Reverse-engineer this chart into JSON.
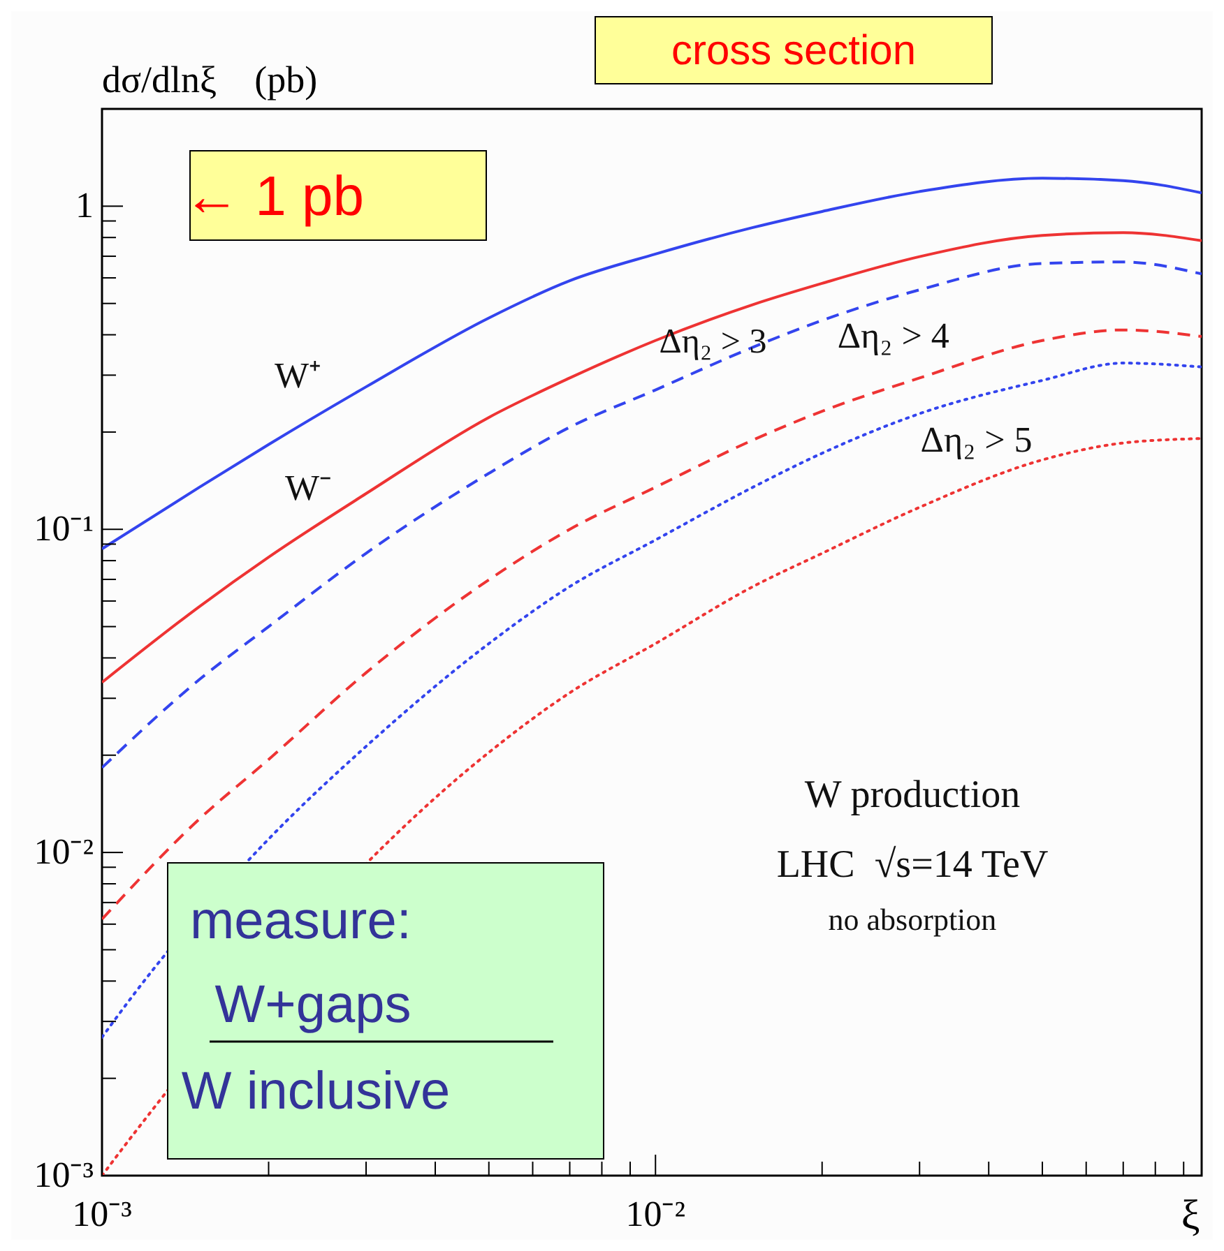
{
  "chart_data": {
    "type": "line",
    "ylabel": "dσ/dlnξ    (pb)",
    "xlabel": "ξ",
    "log": "xy",
    "xlim": [
      0.001,
      0.097
    ],
    "ylim": [
      0.001,
      2
    ],
    "xticks": [
      {
        "value": 0.001,
        "label": "10⁻³"
      },
      {
        "value": 0.002,
        "label": null
      },
      {
        "value": 0.003,
        "label": null
      },
      {
        "value": 0.004,
        "label": null
      },
      {
        "value": 0.005,
        "label": null
      },
      {
        "value": 0.006,
        "label": null
      },
      {
        "value": 0.007,
        "label": null
      },
      {
        "value": 0.008,
        "label": null
      },
      {
        "value": 0.009,
        "label": null
      },
      {
        "value": 0.01,
        "label": "10⁻²"
      },
      {
        "value": 0.02,
        "label": null
      },
      {
        "value": 0.03,
        "label": null
      },
      {
        "value": 0.04,
        "label": null
      },
      {
        "value": 0.05,
        "label": null
      },
      {
        "value": 0.06,
        "label": null
      },
      {
        "value": 0.07,
        "label": null
      },
      {
        "value": 0.08,
        "label": null
      },
      {
        "value": 0.09,
        "label": null
      }
    ],
    "yticks": [
      {
        "value": 0.001,
        "label": "10⁻³"
      },
      {
        "value": 0.002,
        "label": null
      },
      {
        "value": 0.003,
        "label": null
      },
      {
        "value": 0.004,
        "label": null
      },
      {
        "value": 0.005,
        "label": null
      },
      {
        "value": 0.006,
        "label": null
      },
      {
        "value": 0.007,
        "label": null
      },
      {
        "value": 0.008,
        "label": null
      },
      {
        "value": 0.009,
        "label": null
      },
      {
        "value": 0.01,
        "label": "10⁻²"
      },
      {
        "value": 0.02,
        "label": null
      },
      {
        "value": 0.03,
        "label": null
      },
      {
        "value": 0.04,
        "label": null
      },
      {
        "value": 0.05,
        "label": null
      },
      {
        "value": 0.06,
        "label": null
      },
      {
        "value": 0.07,
        "label": null
      },
      {
        "value": 0.08,
        "label": null
      },
      {
        "value": 0.09,
        "label": null
      },
      {
        "value": 0.1,
        "label": "10⁻¹"
      },
      {
        "value": 0.2,
        "label": null
      },
      {
        "value": 0.3,
        "label": null
      },
      {
        "value": 0.4,
        "label": null
      },
      {
        "value": 0.5,
        "label": null
      },
      {
        "value": 0.6,
        "label": null
      },
      {
        "value": 0.7,
        "label": null
      },
      {
        "value": 0.8,
        "label": null
      },
      {
        "value": 0.9,
        "label": null
      },
      {
        "value": 1,
        "label": "1"
      },
      {
        "value": 2,
        "label": null
      }
    ],
    "x": [
      0.001,
      0.0015,
      0.002,
      0.003,
      0.005,
      0.007,
      0.01,
      0.015,
      0.02,
      0.03,
      0.05,
      0.07,
      0.097
    ],
    "series": [
      {
        "color": "#3344ee",
        "line_style": "solid",
        "values": [
          0.087,
          0.135,
          0.183,
          0.276,
          0.451,
          0.588,
          0.711,
          0.859,
          0.963,
          1.11,
          1.22,
          1.2,
          1.1
        ]
      },
      {
        "color": "#ee3333",
        "line_style": "solid",
        "values": [
          0.0336,
          0.0577,
          0.082,
          0.129,
          0.222,
          0.294,
          0.384,
          0.496,
          0.577,
          0.698,
          0.812,
          0.828,
          0.782
        ]
      },
      {
        "color": "#3344ee",
        "line_style": "dashed",
        "values": [
          0.0183,
          0.0343,
          0.05,
          0.0843,
          0.149,
          0.207,
          0.27,
          0.366,
          0.443,
          0.551,
          0.665,
          0.672,
          0.617
        ]
      },
      {
        "color": "#ee3333",
        "line_style": "dashed",
        "values": [
          0.00622,
          0.0127,
          0.0194,
          0.036,
          0.0698,
          0.1,
          0.135,
          0.189,
          0.232,
          0.294,
          0.384,
          0.414,
          0.395
        ]
      },
      {
        "color": "#3344ee",
        "line_style": "dotted",
        "x": [
          0.001,
          0.00115,
          0.002,
          0.003,
          0.005,
          0.007,
          0.01,
          0.015,
          0.02,
          0.03,
          0.05,
          0.07,
          0.097
        ],
        "values": [
          0.00268,
          0.0037,
          0.011,
          0.0213,
          0.0443,
          0.0665,
          0.0927,
          0.135,
          0.172,
          0.228,
          0.289,
          0.327,
          0.318
        ]
      },
      {
        "color": "#ee3333",
        "line_style": "dotted",
        "x": [
          0.001,
          0.00115,
          0.005,
          0.007,
          0.01,
          0.015,
          0.02,
          0.03,
          0.05,
          0.07,
          0.097
        ],
        "values": [
          0.001,
          0.00137,
          0.0204,
          0.0312,
          0.0443,
          0.0665,
          0.0843,
          0.117,
          0.164,
          0.185,
          0.191
        ]
      }
    ],
    "annotations": [
      "W⁺",
      "W⁻",
      "Δη₂ > 3",
      "Δη₂ > 4",
      "Δη₂ > 5",
      "cross section",
      "← 1 pb",
      "measure:",
      "W+gaps",
      "W inclusive",
      "W production",
      "LHC  √s=14 TeV",
      "no absorption"
    ]
  }
}
